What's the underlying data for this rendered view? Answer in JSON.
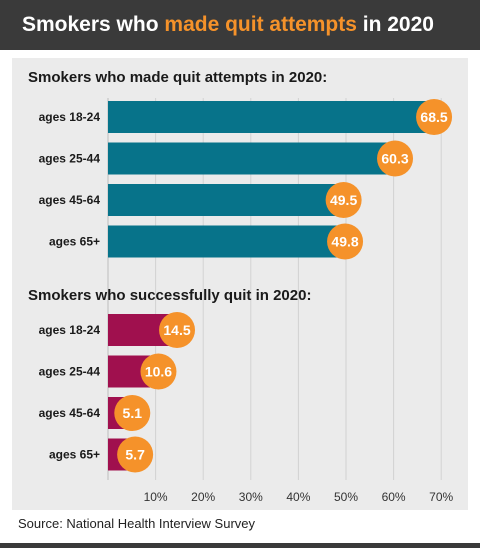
{
  "header": {
    "title_before": "Smokers who ",
    "title_highlight": "made quit attempts",
    "title_after": " in 2020"
  },
  "source": "Source: National Health Interview Survey",
  "colors": {
    "attempt_bar": "#07738a",
    "success_bar": "#a0104e",
    "value_badge": "#f5922a",
    "header_bg": "#3a3a3a"
  },
  "chart_data": [
    {
      "type": "bar",
      "orientation": "horizontal",
      "title": "Smokers who made quit attempts in 2020:",
      "categories": [
        "ages 18-24",
        "ages 25-44",
        "ages 45-64",
        "ages 65+"
      ],
      "values": [
        68.5,
        60.3,
        49.5,
        49.8
      ],
      "value_labels": [
        "68.5",
        "60.3",
        "49.5",
        "49.8"
      ],
      "xlim": [
        0,
        70
      ],
      "grid": true
    },
    {
      "type": "bar",
      "orientation": "horizontal",
      "title": "Smokers who successfully quit in 2020:",
      "categories": [
        "ages 18-24",
        "ages 25-44",
        "ages 45-64",
        "ages 65+"
      ],
      "values": [
        14.5,
        10.6,
        5.1,
        5.7
      ],
      "value_labels": [
        "14.5",
        "10.6",
        "5.1",
        "5.7"
      ],
      "xlim": [
        0,
        70
      ],
      "xticks": [
        "10%",
        "20%",
        "30%",
        "40%",
        "50%",
        "60%",
        "70%"
      ],
      "grid": true
    }
  ]
}
